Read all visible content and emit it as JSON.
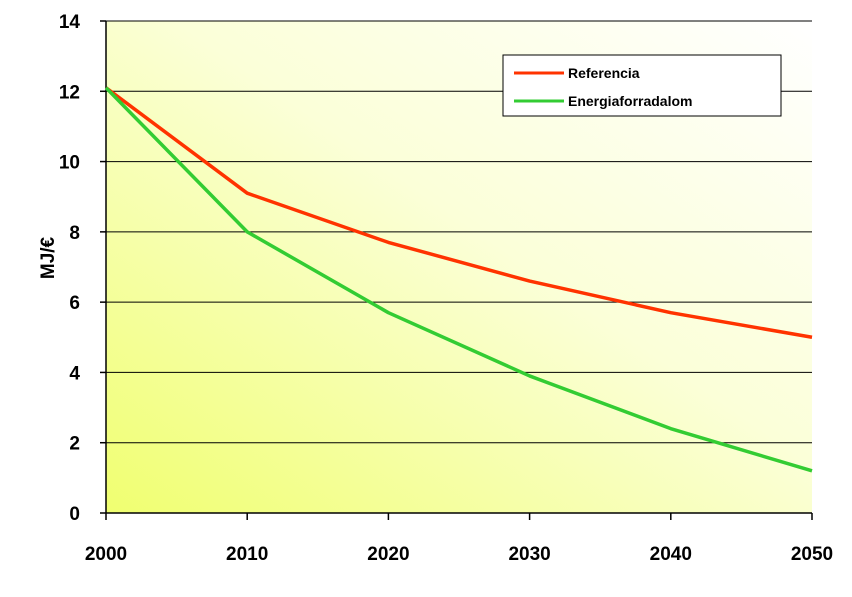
{
  "chart_data": {
    "type": "line",
    "ylabel": "MJ/€",
    "xlabel": "",
    "title": "",
    "x": [
      2000,
      2010,
      2020,
      2030,
      2040,
      2050
    ],
    "xlim": [
      2000,
      2050
    ],
    "ylim": [
      0,
      14
    ],
    "yticks": [
      0,
      2,
      4,
      6,
      8,
      10,
      12,
      14
    ],
    "xticks": [
      2000,
      2010,
      2020,
      2030,
      2040,
      2050
    ],
    "grid": "horizontal",
    "legend_position": "top-right",
    "series": [
      {
        "name": "Referencia",
        "color": "#ff3300",
        "values": [
          12.1,
          9.1,
          7.7,
          6.6,
          5.7,
          5.0
        ]
      },
      {
        "name": "Energiaforradalom",
        "color": "#33cc33",
        "values": [
          12.1,
          8.0,
          5.7,
          3.9,
          2.4,
          1.2
        ]
      }
    ],
    "background": {
      "gradient_from": "#f0ff80",
      "gradient_to": "#ffffff"
    }
  }
}
